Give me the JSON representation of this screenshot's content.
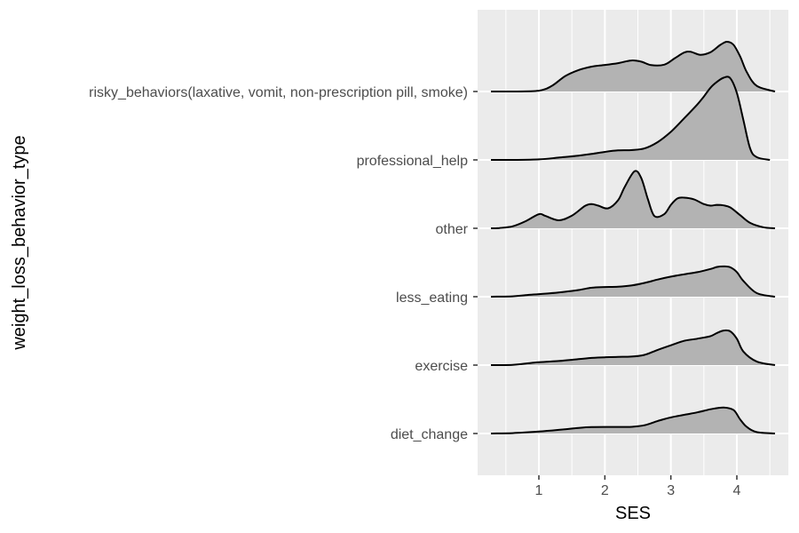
{
  "chart_data": {
    "type": "ridgeline",
    "xlabel": "SES",
    "ylabel": "weight_loss_behavior_type",
    "xlim": [
      0.3,
      4.6
    ],
    "xticks": [
      1,
      2,
      3,
      4
    ],
    "grid": true,
    "colors": {
      "panel": "#ebebeb",
      "grid": "#ffffff",
      "fill": "#b3b3b3",
      "line": "#000000"
    },
    "categories": [
      "diet_change",
      "exercise",
      "less_eating",
      "other",
      "professional_help",
      "risky_behaviors(laxative, vomit, non-prescription pill, smoke)"
    ],
    "series": [
      {
        "category": "diet_change",
        "x": [
          0.2,
          0.6,
          1.0,
          1.3,
          1.6,
          1.8,
          2.0,
          2.2,
          2.4,
          2.6,
          2.8,
          3.0,
          3.2,
          3.4,
          3.6,
          3.8,
          3.95,
          4.05,
          4.15,
          4.3,
          4.6
        ],
        "density": [
          0.0,
          0.03,
          0.15,
          0.28,
          0.43,
          0.5,
          0.51,
          0.51,
          0.52,
          0.64,
          0.97,
          1.25,
          1.45,
          1.64,
          1.88,
          2.02,
          1.82,
          1.1,
          0.52,
          0.11,
          0.0
        ]
      },
      {
        "category": "exercise",
        "x": [
          0.2,
          0.6,
          0.8,
          1.0,
          1.3,
          1.6,
          1.8,
          2.0,
          2.2,
          2.4,
          2.6,
          2.8,
          3.0,
          3.2,
          3.4,
          3.6,
          3.7,
          3.8,
          3.9,
          4.0,
          4.1,
          4.3,
          4.6
        ],
        "density": [
          0.0,
          0.02,
          0.12,
          0.22,
          0.32,
          0.46,
          0.56,
          0.61,
          0.64,
          0.66,
          0.79,
          1.18,
          1.54,
          1.88,
          2.05,
          2.25,
          2.5,
          2.68,
          2.62,
          2.05,
          1.05,
          0.28,
          0.0
        ]
      },
      {
        "category": "less_eating",
        "x": [
          0.2,
          0.6,
          0.8,
          1.0,
          1.3,
          1.6,
          1.8,
          2.0,
          2.2,
          2.4,
          2.6,
          2.8,
          3.0,
          3.2,
          3.4,
          3.6,
          3.7,
          3.8,
          3.9,
          4.0,
          4.1,
          4.3,
          4.6
        ],
        "density": [
          0.0,
          0.03,
          0.12,
          0.2,
          0.33,
          0.52,
          0.7,
          0.75,
          0.77,
          0.87,
          1.07,
          1.33,
          1.56,
          1.74,
          1.9,
          2.15,
          2.31,
          2.35,
          2.28,
          1.91,
          1.22,
          0.28,
          0.0
        ]
      },
      {
        "category": "other",
        "x": [
          0.2,
          0.4,
          0.6,
          0.8,
          1.0,
          1.1,
          1.3,
          1.5,
          1.7,
          1.8,
          1.9,
          2.05,
          2.2,
          2.3,
          2.45,
          2.55,
          2.65,
          2.75,
          2.9,
          3.0,
          3.1,
          3.2,
          3.35,
          3.5,
          3.6,
          3.7,
          3.8,
          3.9,
          4.05,
          4.2,
          4.4,
          4.6
        ],
        "density": [
          0.0,
          0.02,
          0.15,
          0.55,
          1.1,
          0.96,
          0.62,
          0.98,
          1.74,
          1.88,
          1.76,
          1.55,
          2.18,
          3.2,
          4.43,
          3.92,
          2.3,
          0.95,
          1.1,
          1.82,
          2.32,
          2.38,
          2.25,
          1.88,
          1.76,
          1.82,
          1.78,
          1.62,
          1.02,
          0.42,
          0.08,
          0.0
        ]
      },
      {
        "category": "professional_help",
        "x": [
          0.2,
          0.6,
          1.0,
          1.3,
          1.6,
          1.8,
          2.0,
          2.2,
          2.4,
          2.6,
          2.8,
          3.0,
          3.2,
          3.4,
          3.5,
          3.6,
          3.7,
          3.8,
          3.9,
          4.0,
          4.1,
          4.2,
          4.3,
          4.5
        ],
        "density": [
          0.0,
          0.0,
          0.04,
          0.18,
          0.33,
          0.46,
          0.62,
          0.74,
          0.76,
          0.89,
          1.38,
          2.18,
          3.22,
          4.3,
          4.92,
          5.6,
          6.06,
          6.38,
          6.34,
          5.2,
          3.08,
          0.9,
          0.22,
          0.0
        ]
      },
      {
        "category": "risky_behaviors(laxative, vomit, non-prescription pill, smoke)",
        "x": [
          0.2,
          0.6,
          1.0,
          1.2,
          1.4,
          1.6,
          1.8,
          2.0,
          2.2,
          2.4,
          2.55,
          2.7,
          2.9,
          3.05,
          3.2,
          3.3,
          3.45,
          3.6,
          3.75,
          3.85,
          3.95,
          4.05,
          4.15,
          4.3,
          4.6
        ],
        "density": [
          0.0,
          0.0,
          0.06,
          0.45,
          1.2,
          1.66,
          1.93,
          2.06,
          2.2,
          2.41,
          2.32,
          2.05,
          2.08,
          2.55,
          3.02,
          3.08,
          2.85,
          3.05,
          3.62,
          3.86,
          3.62,
          2.72,
          1.52,
          0.44,
          0.0
        ]
      }
    ]
  }
}
